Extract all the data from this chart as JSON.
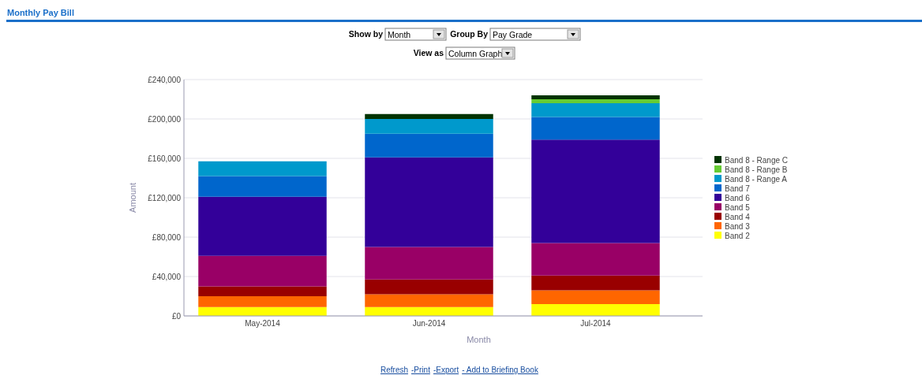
{
  "chart_data": {
    "type": "bar",
    "title": "Monthly Pay Bill",
    "xlabel": "Month",
    "ylabel": "Amount",
    "stacked": true,
    "grid": "y",
    "legend": "right",
    "categories": [
      "May-2014",
      "Jun-2014",
      "Jul-2014"
    ],
    "ylim": [
      0,
      240000
    ],
    "yticks": [
      {
        "value": 0,
        "label": "£0"
      },
      {
        "value": 40000,
        "label": "£40,000"
      },
      {
        "value": 80000,
        "label": "£80,000"
      },
      {
        "value": 120000,
        "label": "£120,000"
      },
      {
        "value": 160000,
        "label": "£160,000"
      },
      {
        "value": 200000,
        "label": "£200,000"
      },
      {
        "value": 240000,
        "label": "£240,000"
      }
    ],
    "series": [
      {
        "name": "Band 2",
        "color": "#ffff00",
        "values": [
          9000,
          9000,
          12000
        ]
      },
      {
        "name": "Band 3",
        "color": "#ff6600",
        "values": [
          11000,
          13000,
          14000
        ]
      },
      {
        "name": "Band 4",
        "color": "#990000",
        "values": [
          10000,
          15000,
          15000
        ]
      },
      {
        "name": "Band 5",
        "color": "#990066",
        "values": [
          31000,
          33000,
          33000
        ]
      },
      {
        "name": "Band 6",
        "color": "#330099",
        "values": [
          60000,
          91000,
          105000
        ]
      },
      {
        "name": "Band 7",
        "color": "#0066cc",
        "values": [
          21000,
          24000,
          23000
        ]
      },
      {
        "name": "Band 8 - Range A",
        "color": "#0099cc",
        "values": [
          15000,
          15000,
          14000
        ]
      },
      {
        "name": "Band 8 - Range B",
        "color": "#66cc33",
        "values": [
          0,
          0,
          4000
        ]
      },
      {
        "name": "Band 8 - Range C",
        "color": "#003300",
        "values": [
          0,
          5000,
          4000
        ]
      }
    ],
    "annotations": [
      "Show by",
      "Month",
      "Group By",
      "Pay Grade",
      "View as",
      "Column Graph",
      "Refresh",
      "-Print",
      "-Export",
      "- Add to Briefing Book"
    ]
  }
}
